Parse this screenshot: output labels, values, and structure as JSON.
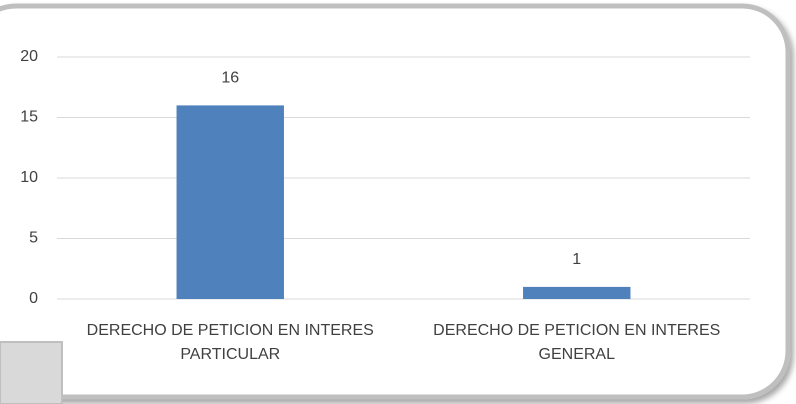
{
  "chart_data": {
    "type": "bar",
    "categories": [
      "DERECHO DE PETICION EN INTERES PARTICULAR",
      "DERECHO DE PETICION EN INTERES GENERAL"
    ],
    "values": [
      16,
      1
    ],
    "color": "#4f81bd",
    "ylim": [
      0,
      20
    ],
    "yticks": [
      0,
      5,
      10,
      15,
      20
    ],
    "grid": true
  }
}
